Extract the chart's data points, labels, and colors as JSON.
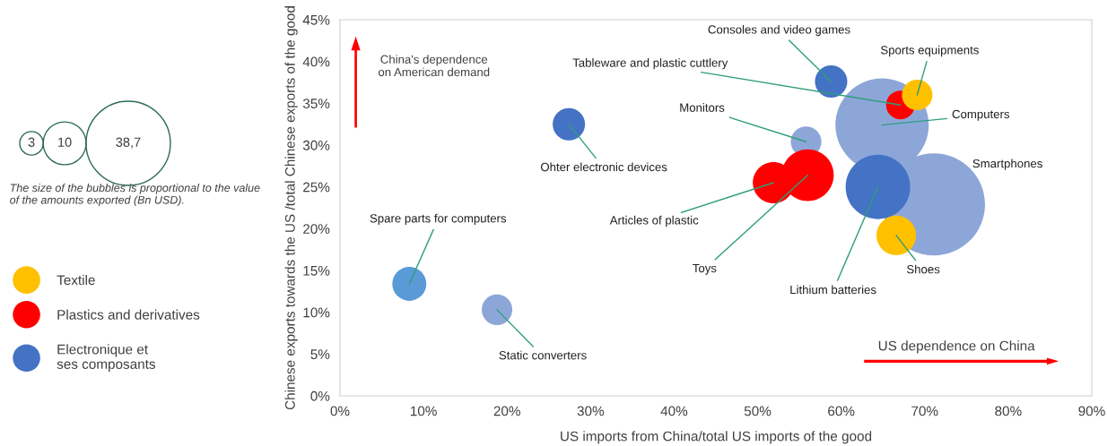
{
  "chart_data": {
    "type": "bubble",
    "xlabel": "US imports from China/total US imports of the good",
    "ylabel": "Chinese exports towards the US /total Chinese exports of the good",
    "xlim": [
      0,
      90
    ],
    "ylim": [
      0,
      45
    ],
    "xticks": [
      {
        "value": 0,
        "label": "0%"
      },
      {
        "value": 10,
        "label": "10%"
      },
      {
        "value": 20,
        "label": "20%"
      },
      {
        "value": 30,
        "label": "30%"
      },
      {
        "value": 40,
        "label": "40%"
      },
      {
        "value": 50,
        "label": "50%"
      },
      {
        "value": 60,
        "label": "60%"
      },
      {
        "value": 70,
        "label": "70%"
      },
      {
        "value": 80,
        "label": "80%"
      },
      {
        "value": 90,
        "label": "90%"
      }
    ],
    "yticks": [
      {
        "value": 0,
        "label": "0%"
      },
      {
        "value": 5,
        "label": "5%"
      },
      {
        "value": 10,
        "label": "10%"
      },
      {
        "value": 15,
        "label": "15%"
      },
      {
        "value": 20,
        "label": "20%"
      },
      {
        "value": 25,
        "label": "25%"
      },
      {
        "value": 30,
        "label": "30%"
      },
      {
        "value": 35,
        "label": "35%"
      },
      {
        "value": 40,
        "label": "40%"
      },
      {
        "value": 45,
        "label": "45%"
      }
    ],
    "grid": false,
    "legend": "left",
    "size_legend": [
      3,
      10,
      {
        "value": 38.7,
        "label": "38,7"
      }
    ],
    "series": [
      {
        "name": "Textile",
        "color": "#ffc000",
        "x": [
          69.1,
          66.6
        ],
        "values": [
          36.0,
          19.2
        ],
        "sizes": [
          5.1,
          8.5
        ],
        "colors": [
          "#ffc000",
          "#ffc000"
        ]
      },
      {
        "name": "Plastics and derivatives",
        "color": "#ff0000",
        "x": [
          67.1,
          56.0,
          51.9
        ],
        "values": [
          34.8,
          26.4,
          25.5
        ],
        "sizes": [
          4.5,
          14.7,
          9.3
        ],
        "colors": [
          "#ff0000",
          "#ff0000",
          "#ff0000"
        ]
      },
      {
        "name": "Electronique et\nses composants",
        "color": "#4472c4",
        "x": [
          64.9,
          71.1,
          8.3,
          18.8,
          27.4,
          58.8,
          55.8,
          64.4
        ],
        "values": [
          32.4,
          22.9,
          13.4,
          10.3,
          32.5,
          37.6,
          30.4,
          25.0
        ],
        "sizes": [
          47.4,
          56.9,
          6.3,
          5.1,
          5.7,
          5.7,
          5.1,
          22.7
        ],
        "colors": [
          "#8da6d8",
          "#8da6d8",
          "#5a9ad6",
          "#8da6d8",
          "#4472c4",
          "#4472c4",
          "#8da6d8",
          "#4472c4"
        ]
      }
    ],
    "annotations": [
      {
        "text": "Sports equipments",
        "x": 69.1,
        "y": 36.0
      },
      {
        "text": "Shoes",
        "x": 66.6,
        "y": 19.2
      },
      {
        "text": "Tableware and plastic cuttlery",
        "x": 67.1,
        "y": 34.8
      },
      {
        "text": "Toys",
        "x": 56.0,
        "y": 26.4
      },
      {
        "text": "Articles of plastic",
        "x": 51.9,
        "y": 25.5
      },
      {
        "text": "Computers",
        "x": 64.9,
        "y": 32.4
      },
      {
        "text": "Spare parts for computers",
        "x": 8.3,
        "y": 13.4
      },
      {
        "text": "Static converters",
        "x": 18.8,
        "y": 10.3
      },
      {
        "text": "Ohter electronic devices",
        "x": 27.4,
        "y": 32.5
      },
      {
        "text": "Consoles and video games",
        "x": 58.8,
        "y": 37.6
      },
      {
        "text": "Monitors",
        "x": 55.8,
        "y": 30.4
      },
      {
        "text": "Lithium batteries",
        "x": 64.4,
        "y": 25.0
      },
      "China's dependence\non American demand",
      "US dependence on China",
      "Smartphones",
      "The size of the bubbles is proportional to the value of the amounts exported (Bn USD)."
    ]
  }
}
